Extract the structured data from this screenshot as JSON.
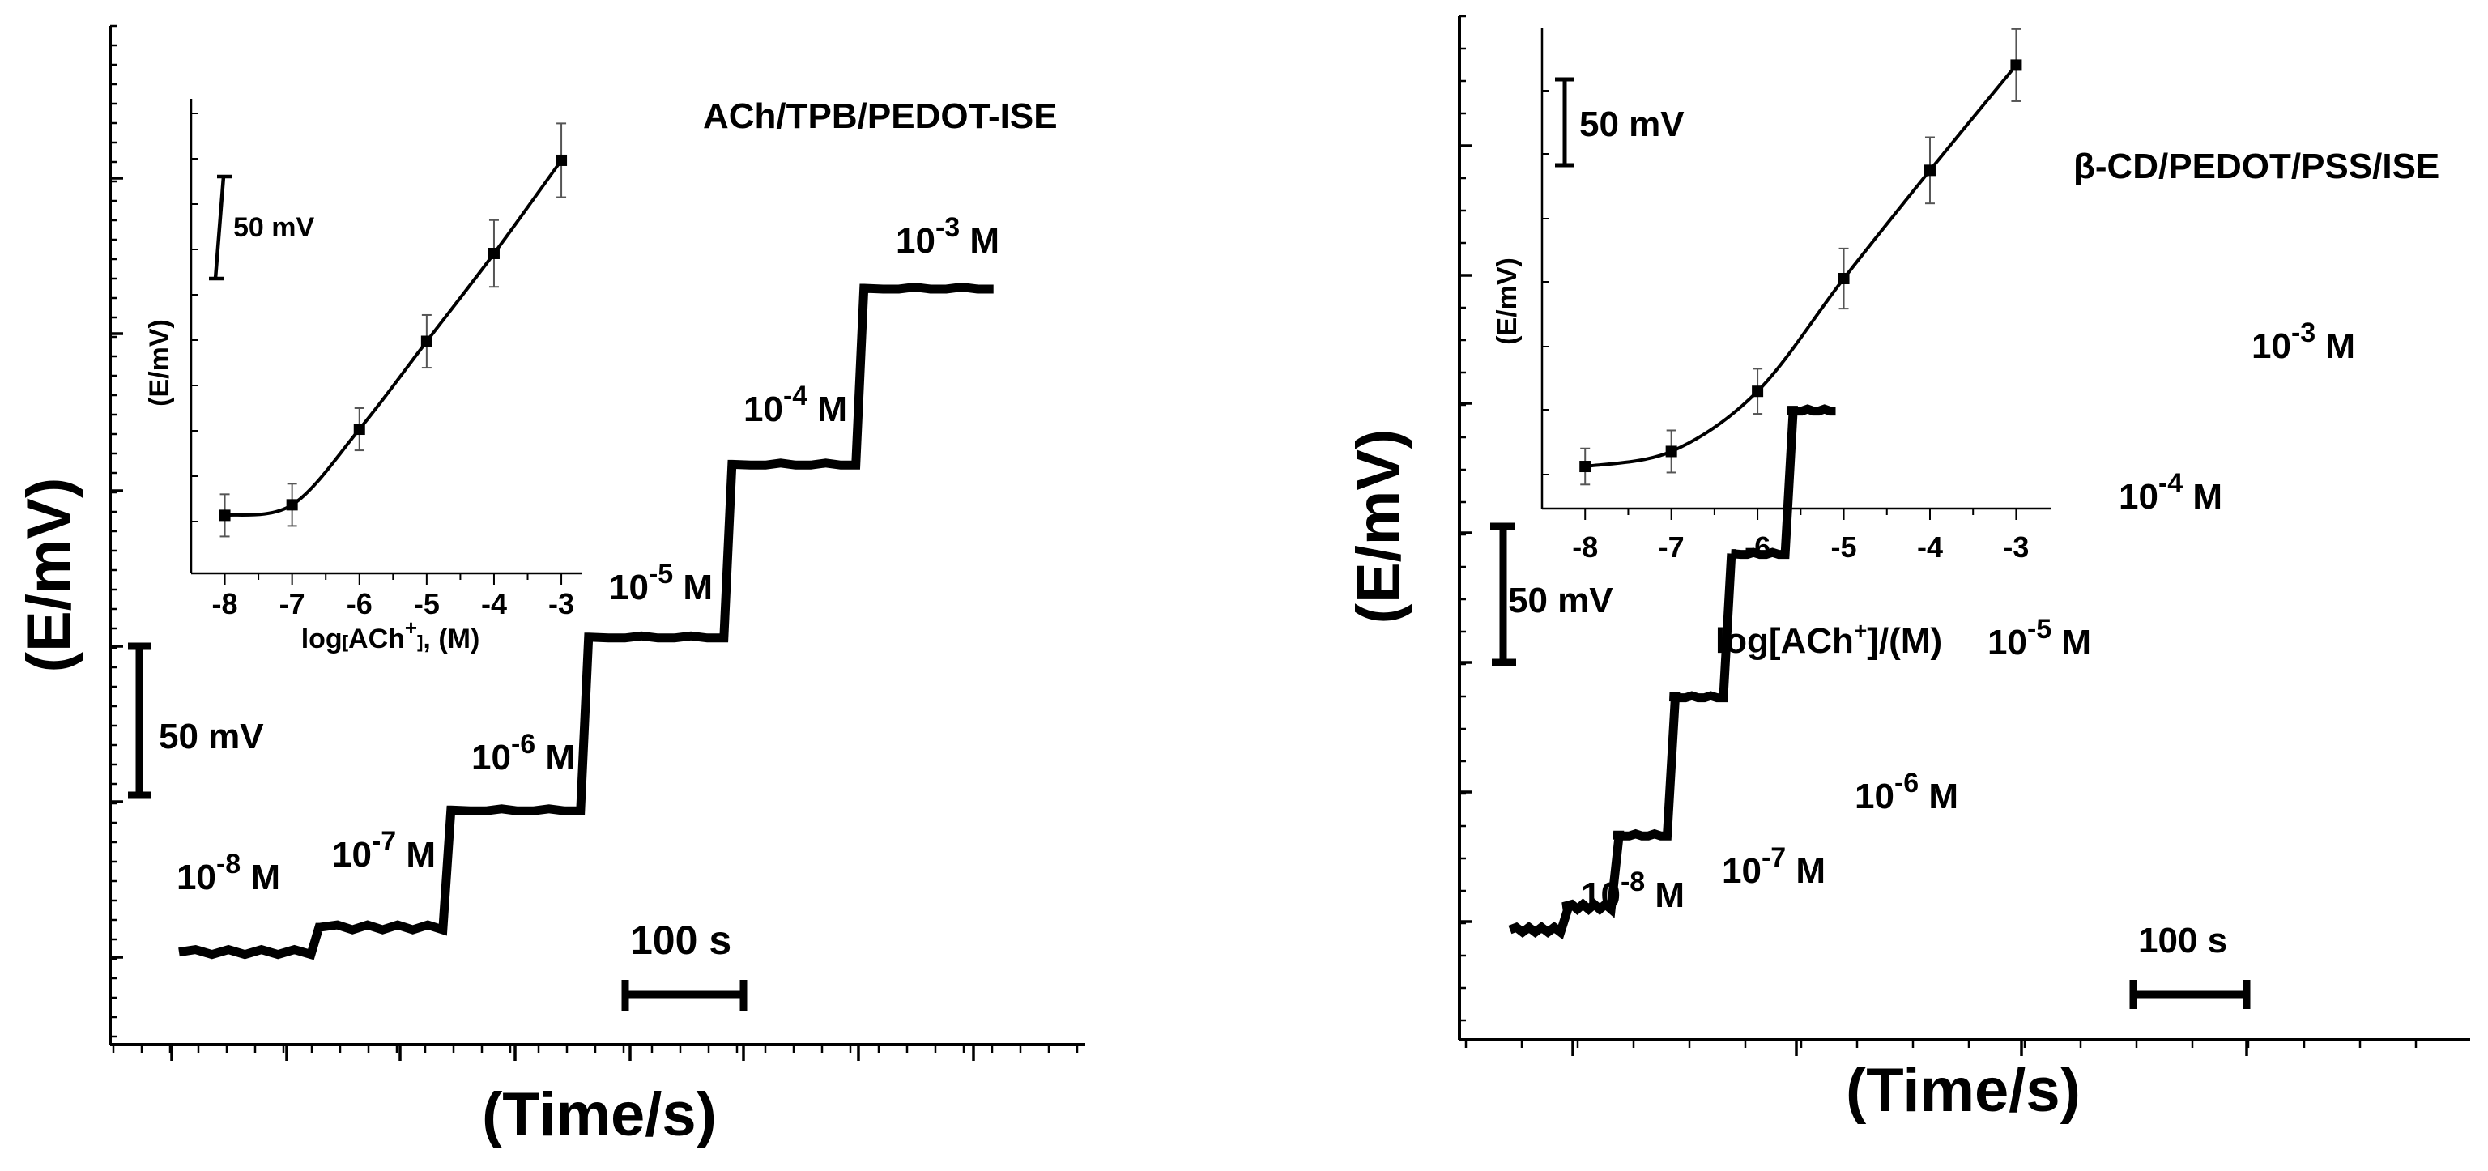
{
  "colors": {
    "line": "#000000",
    "background": "#ffffff",
    "errorbar": "#555555"
  },
  "chart_data": [
    {
      "type": "line",
      "panel": "left",
      "title": "ACh/TPB/PEDOT-ISE",
      "xlabel": "(Time/s)",
      "ylabel": "(E/mV)",
      "scale_bar_y": "50 mV",
      "scale_bar_x": "100 s",
      "xlim": [
        0,
        850
      ],
      "ylim": [
        0,
        330
      ],
      "steps": [
        {
          "label": "10",
          "exp": "-8",
          "unit": " M",
          "t_start": 60,
          "t_end": 175,
          "e": 30
        },
        {
          "label": "10",
          "exp": "-7",
          "unit": " M",
          "t_start": 185,
          "t_end": 290,
          "e": 38
        },
        {
          "label": "10",
          "exp": "-6",
          "unit": " M",
          "t_start": 300,
          "t_end": 410,
          "e": 76
        },
        {
          "label": "10",
          "exp": "-5",
          "unit": " M",
          "t_start": 420,
          "t_end": 535,
          "e": 132
        },
        {
          "label": "10",
          "exp": "-4",
          "unit": " M",
          "t_start": 545,
          "t_end": 650,
          "e": 188
        },
        {
          "label": "10",
          "exp": "-3",
          "unit": " M",
          "t_start": 660,
          "t_end": 770,
          "e": 245
        }
      ],
      "inset": {
        "type": "scatter",
        "xlabel_parts": {
          "pre": "log",
          "bracket_open": "[",
          "species": "ACh",
          "charge": "+",
          "bracket_close": "]",
          "post": ", (M)"
        },
        "ylabel": "(E/mV)",
        "scale_bar": "50 mV",
        "xlim": [
          -8.5,
          -2.7
        ],
        "ylim": [
          0,
          270
        ],
        "x": [
          -8,
          -7,
          -6,
          -5,
          -4,
          -3
        ],
        "y": [
          33,
          39,
          82,
          132,
          182,
          235
        ],
        "err": [
          12,
          12,
          12,
          15,
          19,
          21
        ],
        "x_tick_labels": [
          "-8",
          "-7",
          "-6",
          "-5",
          "-4",
          "-3"
        ]
      }
    },
    {
      "type": "line",
      "panel": "right",
      "title": "β-CD/PEDOT/PSS/ISE",
      "xlabel": "(Time/s)",
      "ylabel": "(E/mV)",
      "scale_bar_y": "50 mV",
      "scale_bar_x": "100 s",
      "xlim": [
        0,
        900
      ],
      "ylim": [
        0,
        400
      ],
      "steps": [
        {
          "label": "10",
          "exp": "-8",
          "unit": " M",
          "t_start": 45,
          "t_end": 90,
          "e": 43
        },
        {
          "label": "10",
          "exp": "-7",
          "unit": " M",
          "t_start": 95,
          "t_end": 135,
          "e": 52
        },
        {
          "label": "10",
          "exp": "-6",
          "unit": " M",
          "t_start": 140,
          "t_end": 185,
          "e": 80
        },
        {
          "label": "10",
          "exp": "-5",
          "unit": " M",
          "t_start": 190,
          "t_end": 235,
          "e": 134
        },
        {
          "label": "10",
          "exp": "-4",
          "unit": " M",
          "t_start": 245,
          "t_end": 290,
          "e": 190
        },
        {
          "label": "10",
          "exp": "-3",
          "unit": " M",
          "t_start": 295,
          "t_end": 335,
          "e": 246
        }
      ],
      "inset": {
        "type": "scatter",
        "xlabel_parts": {
          "pre": "log",
          "bracket_open": "[",
          "species": "ACh",
          "charge": "+",
          "bracket_close": "]",
          "post": "/(M)"
        },
        "ylabel": "(E/mV)",
        "scale_bar": "50 mV",
        "xlim": [
          -8.5,
          -2.6
        ],
        "ylim": [
          0,
          320
        ],
        "x": [
          -8,
          -7,
          -6,
          -5,
          -4,
          -3
        ],
        "y": [
          28,
          38,
          78,
          153,
          225,
          295
        ],
        "err": [
          12,
          14,
          15,
          20,
          22,
          24
        ],
        "x_tick_labels": [
          "-8",
          "-7",
          "-6",
          "-5",
          "-4",
          "-3"
        ]
      }
    }
  ]
}
